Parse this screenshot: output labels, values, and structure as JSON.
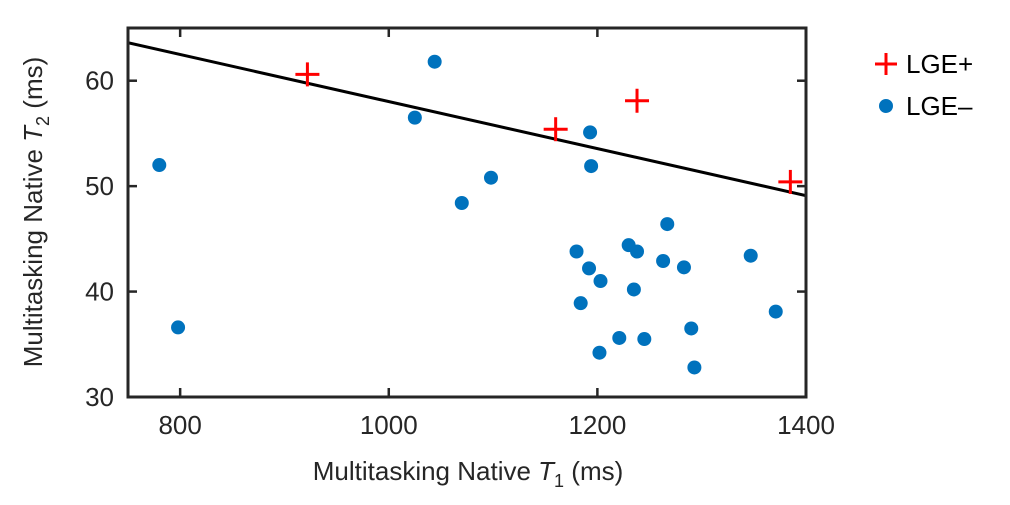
{
  "colors": {
    "lge_pos": "#ff0000",
    "lge_neg": "#0072bd",
    "fit_line": "#000000",
    "axis": "#262626"
  },
  "chart_data": {
    "type": "scatter",
    "title": "",
    "xlabel": {
      "prefix": "Multitasking Native ",
      "var": "T",
      "sub": "1",
      "suffix": " (ms)"
    },
    "ylabel": {
      "prefix": "Multitasking Native ",
      "var": "T",
      "sub": "2",
      "suffix": " (ms)"
    },
    "xlim": [
      750,
      1400
    ],
    "ylim": [
      30,
      65
    ],
    "xticks": [
      800,
      1000,
      1200,
      1400
    ],
    "yticks": [
      30,
      40,
      50,
      60
    ],
    "xtick_labels": [
      "800",
      "1000",
      "1200",
      "1400"
    ],
    "ytick_labels": [
      "30",
      "40",
      "50",
      "60"
    ],
    "legend_position": "outside-top-right",
    "series": [
      {
        "name": "LGE+",
        "marker": "plus",
        "color": "#ff0000",
        "points": [
          [
            922,
            60.6
          ],
          [
            1160,
            55.4
          ],
          [
            1238,
            58.1
          ],
          [
            1385,
            50.4
          ]
        ]
      },
      {
        "name": "LGE–",
        "marker": "circle",
        "color": "#0072bd",
        "points": [
          [
            780,
            52.0
          ],
          [
            798,
            36.6
          ],
          [
            1025,
            56.5
          ],
          [
            1044,
            61.8
          ],
          [
            1070,
            48.4
          ],
          [
            1098,
            50.8
          ],
          [
            1180,
            43.8
          ],
          [
            1184,
            38.9
          ],
          [
            1192,
            42.2
          ],
          [
            1193,
            55.1
          ],
          [
            1194,
            51.9
          ],
          [
            1202,
            34.2
          ],
          [
            1203,
            41.0
          ],
          [
            1221,
            35.6
          ],
          [
            1230,
            44.4
          ],
          [
            1235,
            40.2
          ],
          [
            1238,
            43.8
          ],
          [
            1245,
            35.5
          ],
          [
            1263,
            42.9
          ],
          [
            1267,
            46.4
          ],
          [
            1283,
            42.3
          ],
          [
            1290,
            36.5
          ],
          [
            1293,
            32.8
          ],
          [
            1347,
            43.4
          ],
          [
            1371,
            38.1
          ]
        ]
      }
    ],
    "fit_line": {
      "x": [
        750,
        1400
      ],
      "y": [
        63.6,
        49.1
      ]
    }
  }
}
